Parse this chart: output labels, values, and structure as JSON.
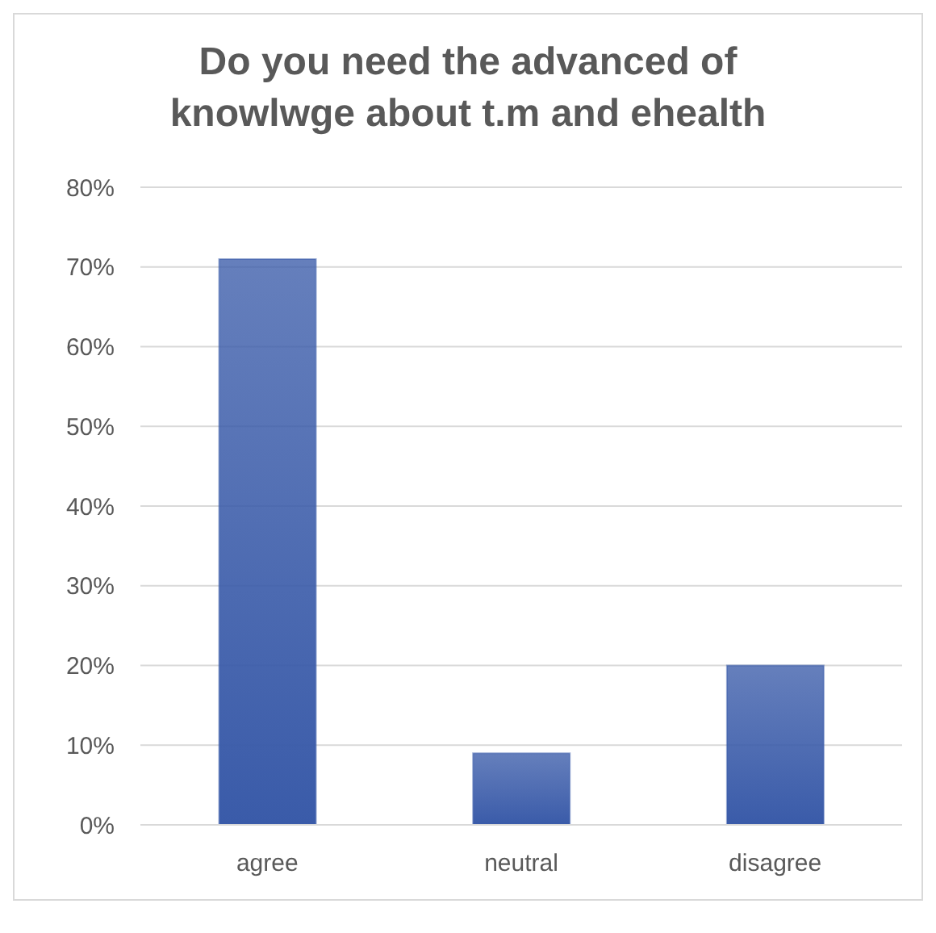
{
  "chart_data": {
    "type": "bar",
    "title": "Do you need the advanced of knowlwge about t.m and ehealth",
    "categories": [
      "agree",
      "neutral",
      "disagree"
    ],
    "values": [
      71,
      9,
      20
    ],
    "color": "#3a5ba9",
    "ylim": [
      0,
      80
    ],
    "yticks": [
      {
        "value": 0,
        "label": "0%"
      },
      {
        "value": 10,
        "label": "10%"
      },
      {
        "value": 20,
        "label": "20%"
      },
      {
        "value": 30,
        "label": "30%"
      },
      {
        "value": 40,
        "label": "40%"
      },
      {
        "value": 50,
        "label": "50%"
      },
      {
        "value": 60,
        "label": "60%"
      },
      {
        "value": 70,
        "label": "70%"
      },
      {
        "value": 80,
        "label": "80%"
      }
    ],
    "grid": "y"
  }
}
